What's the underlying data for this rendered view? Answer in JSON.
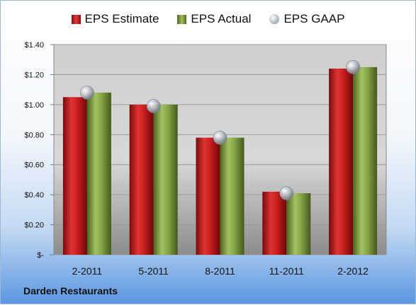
{
  "legend": {
    "estimate": "EPS Estimate",
    "actual": "EPS Actual",
    "gaap": "EPS GAAP"
  },
  "company": "Darden Restaurants",
  "colors": {
    "estimate": "#c21c1c",
    "actual": "#7f9f3f",
    "gaap": "#b9bec7"
  },
  "chart_data": {
    "type": "bar",
    "title": "",
    "xlabel": "",
    "ylabel": "",
    "categories": [
      "2-2011",
      "5-2011",
      "8-2011",
      "11-2011",
      "2-2012"
    ],
    "series": [
      {
        "name": "EPS Estimate",
        "values": [
          1.05,
          1.0,
          0.78,
          0.42,
          1.24
        ]
      },
      {
        "name": "EPS Actual",
        "values": [
          1.08,
          1.0,
          0.78,
          0.41,
          1.25
        ]
      },
      {
        "name": "EPS GAAP",
        "values": [
          1.08,
          0.99,
          0.78,
          0.41,
          1.25
        ],
        "style": "marker"
      }
    ],
    "ylim": [
      0,
      1.4
    ],
    "yticks": [
      0,
      0.2,
      0.4,
      0.6,
      0.8,
      1.0,
      1.2,
      1.4
    ],
    "ytick_labels": [
      "$-",
      "$0.20",
      "$0.40",
      "$0.60",
      "$0.80",
      "$1.00",
      "$1.20",
      "$1.40"
    ],
    "grid": true,
    "legend_position": "top"
  }
}
